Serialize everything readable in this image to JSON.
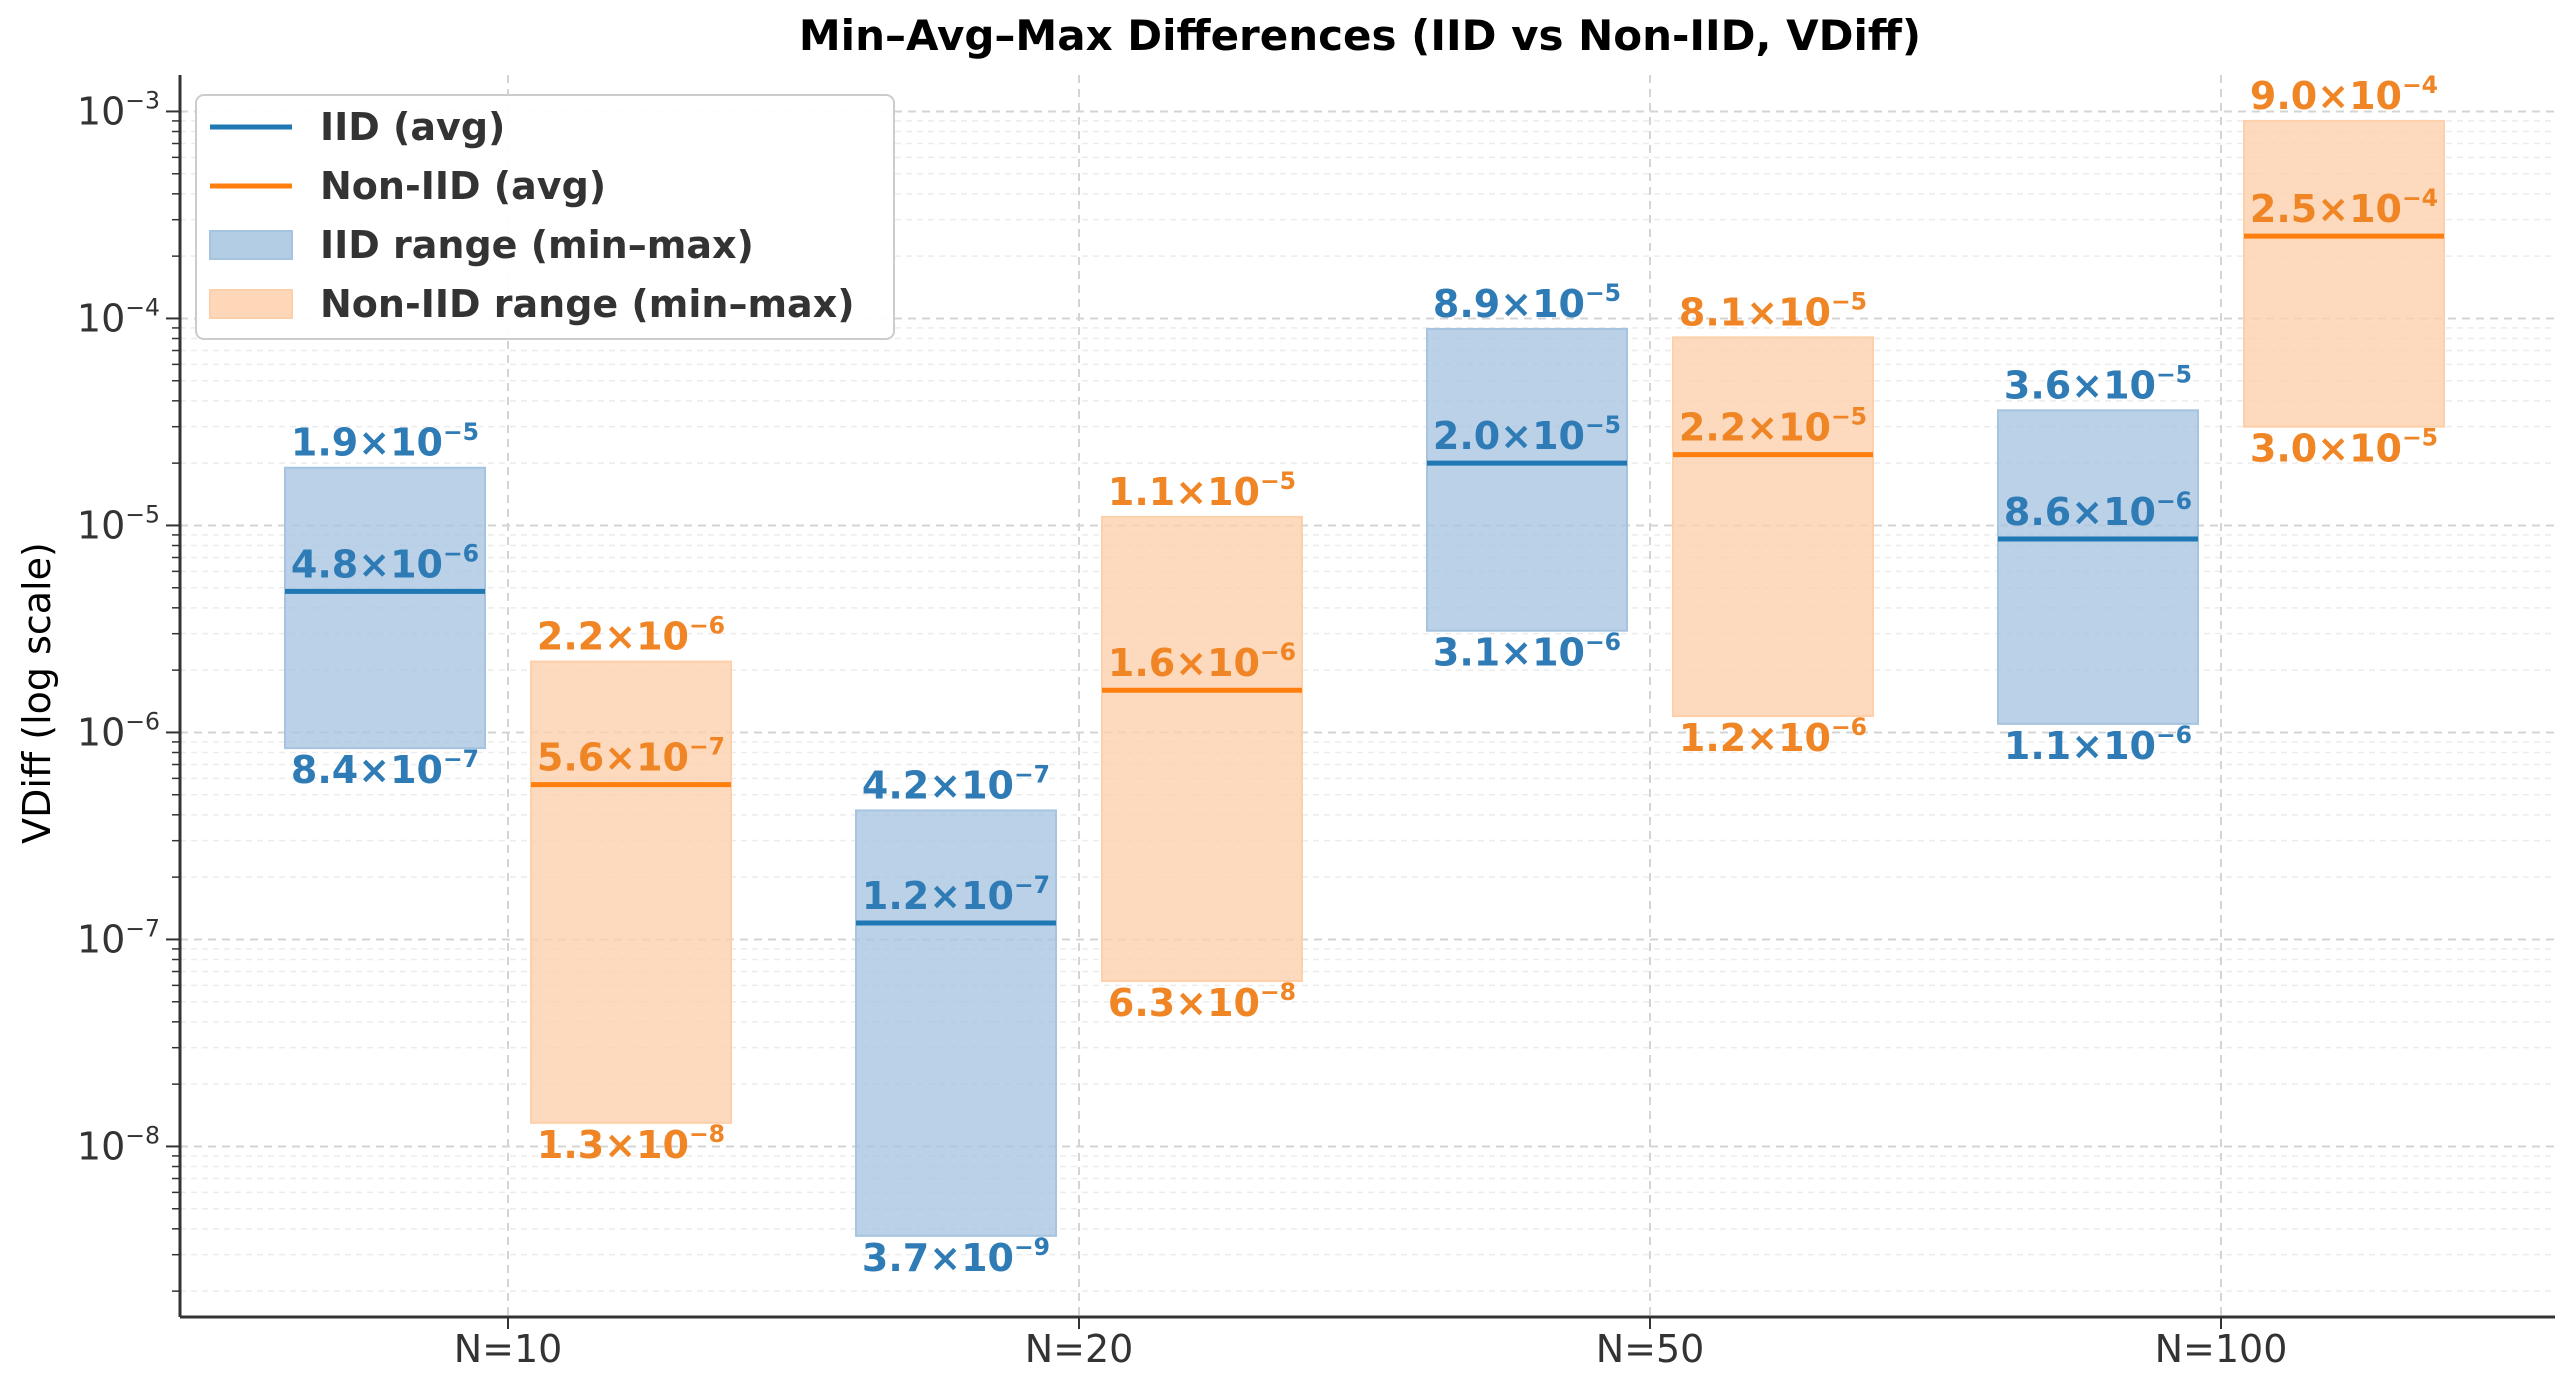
{
  "colors": {
    "iid": "#1f77b4",
    "noniid": "#ff7f0e",
    "iid_label": "#2f7bb5",
    "noniid_label": "#f08525",
    "iid_fill": "#a6c4e0",
    "noniid_fill": "#fdd0aa",
    "axis": "#333333",
    "grid": "#d4d4d4",
    "minor_grid": "#ececec",
    "text": "#333333"
  },
  "chart_data": {
    "type": "range-bar (log scale)",
    "title": "Min–Avg–Max Differences (IID vs Non-IID, VDiff)",
    "xlabel": "",
    "ylabel": "VDiff (log scale)",
    "yscale": "log",
    "ylim": [
      1.5e-09,
      0.0015
    ],
    "yticks": [
      {
        "value": 1e-08,
        "base": "10",
        "exp": "−8"
      },
      {
        "value": 1e-07,
        "base": "10",
        "exp": "−7"
      },
      {
        "value": 1e-06,
        "base": "10",
        "exp": "−6"
      },
      {
        "value": 1e-05,
        "base": "10",
        "exp": "−5"
      },
      {
        "value": 0.0001,
        "base": "10",
        "exp": "−4"
      },
      {
        "value": 0.001,
        "base": "10",
        "exp": "−3"
      }
    ],
    "categories": [
      "N=10",
      "N=20",
      "N=50",
      "N=100"
    ],
    "legend": {
      "position": "top-left",
      "entries": [
        {
          "label": "IID (avg)",
          "kind": "line",
          "series": "iid"
        },
        {
          "label": "Non-IID (avg)",
          "kind": "line",
          "series": "noniid"
        },
        {
          "label": "IID range (min–max)",
          "kind": "patch",
          "series": "iid"
        },
        {
          "label": "Non-IID range (min–max)",
          "kind": "patch",
          "series": "noniid"
        }
      ]
    },
    "series": [
      {
        "name": "IID",
        "key": "iid",
        "min": [
          8.4e-07,
          3.7e-09,
          3.1e-06,
          1.1e-06
        ],
        "avg": [
          4.8e-06,
          1.2e-07,
          2e-05,
          8.6e-06
        ],
        "max": [
          1.9e-05,
          4.2e-07,
          8.9e-05,
          3.6e-05
        ],
        "min_labels": [
          [
            "8.4×10",
            "−7"
          ],
          [
            "3.7×10",
            "−9"
          ],
          [
            "3.1×10",
            "−6"
          ],
          [
            "1.1×10",
            "−6"
          ]
        ],
        "avg_labels": [
          [
            "4.8×10",
            "−6"
          ],
          [
            "1.2×10",
            "−7"
          ],
          [
            "2.0×10",
            "−5"
          ],
          [
            "8.6×10",
            "−6"
          ]
        ],
        "max_labels": [
          [
            "1.9×10",
            "−5"
          ],
          [
            "4.2×10",
            "−7"
          ],
          [
            "8.9×10",
            "−5"
          ],
          [
            "3.6×10",
            "−5"
          ]
        ]
      },
      {
        "name": "Non-IID",
        "key": "noniid",
        "min": [
          1.3e-08,
          6.3e-08,
          1.2e-06,
          3e-05
        ],
        "avg": [
          5.6e-07,
          1.6e-06,
          2.2e-05,
          0.00025
        ],
        "max": [
          2.2e-06,
          1.1e-05,
          8.1e-05,
          0.0009
        ],
        "min_labels": [
          [
            "1.3×10",
            "−8"
          ],
          [
            "6.3×10",
            "−8"
          ],
          [
            "1.2×10",
            "−6"
          ],
          [
            "3.0×10",
            "−5"
          ]
        ],
        "avg_labels": [
          [
            "5.6×10",
            "−7"
          ],
          [
            "1.6×10",
            "−6"
          ],
          [
            "2.2×10",
            "−5"
          ],
          [
            "2.5×10",
            "−4"
          ]
        ],
        "max_labels": [
          [
            "2.2×10",
            "−6"
          ],
          [
            "1.1×10",
            "−5"
          ],
          [
            "8.1×10",
            "−5"
          ],
          [
            "9.0×10",
            "−4"
          ]
        ]
      }
    ]
  }
}
